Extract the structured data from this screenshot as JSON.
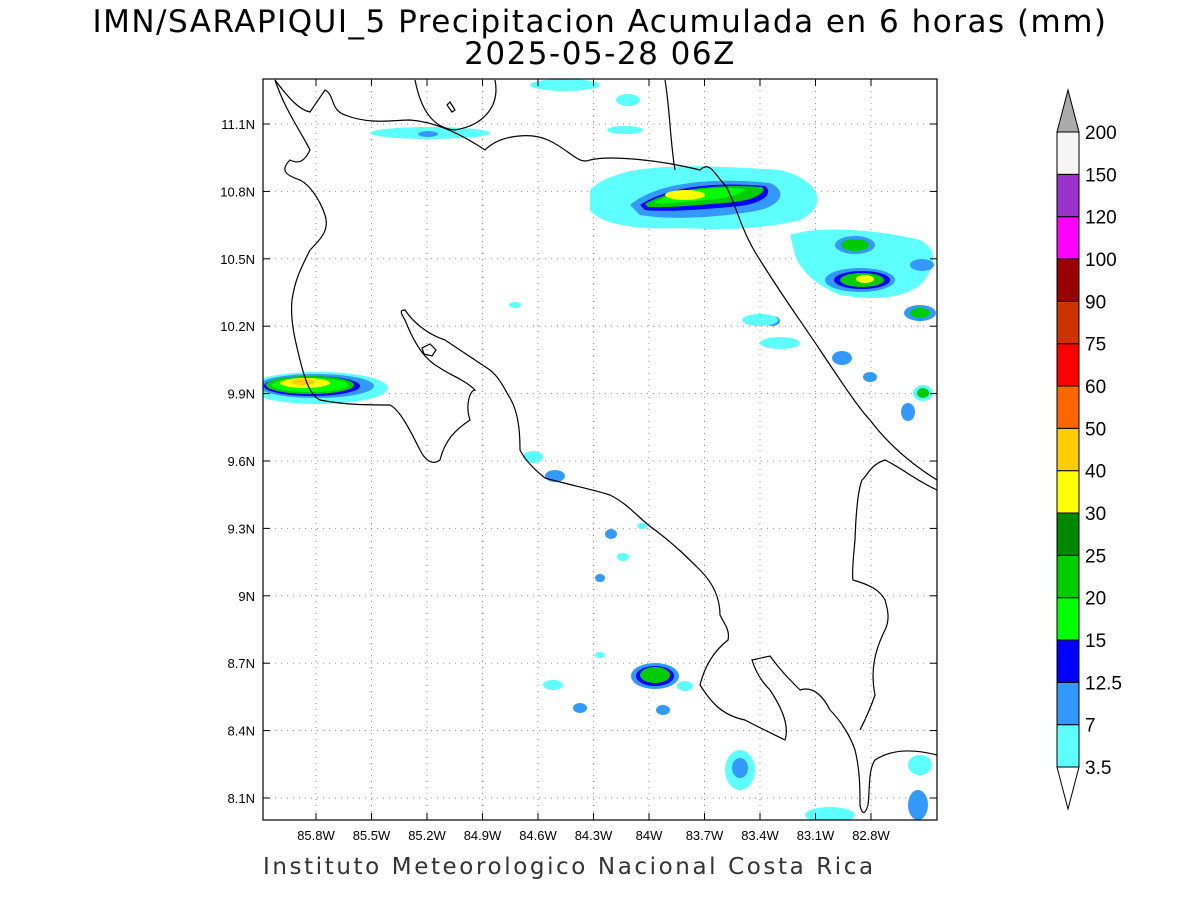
{
  "title": {
    "line1": "IMN/SARAPIQUI_5 Precipitacion Acumulada en 6 horas (mm)",
    "line2": "2025-05-28 06Z"
  },
  "footer": "Instituto Meteorologico Nacional Costa Rica",
  "axes": {
    "x_ticks": [
      "85.8W",
      "85.5W",
      "85.2W",
      "84.9W",
      "84.6W",
      "84.3W",
      "84W",
      "83.7W",
      "83.4W",
      "83.1W",
      "82.8W"
    ],
    "y_ticks": [
      "11.1N",
      "10.8N",
      "10.5N",
      "10.2N",
      "9.9N",
      "9.6N",
      "9.3N",
      "9N",
      "8.7N",
      "8.4N",
      "8.1N"
    ],
    "grid": true
  },
  "colorbar": {
    "levels": [
      "3.5",
      "7",
      "12.5",
      "15",
      "20",
      "25",
      "30",
      "40",
      "50",
      "60",
      "75",
      "90",
      "100",
      "120",
      "150",
      "200"
    ],
    "colors": [
      "#5effff",
      "#3399ff",
      "#0000ff",
      "#00ff00",
      "#00cc00",
      "#008800",
      "#ffff00",
      "#ffcc00",
      "#ff6600",
      "#ff0000",
      "#cc3300",
      "#990000",
      "#ff00ff",
      "#9933cc",
      "#f5f5f5",
      "#aaaaaa"
    ]
  }
}
